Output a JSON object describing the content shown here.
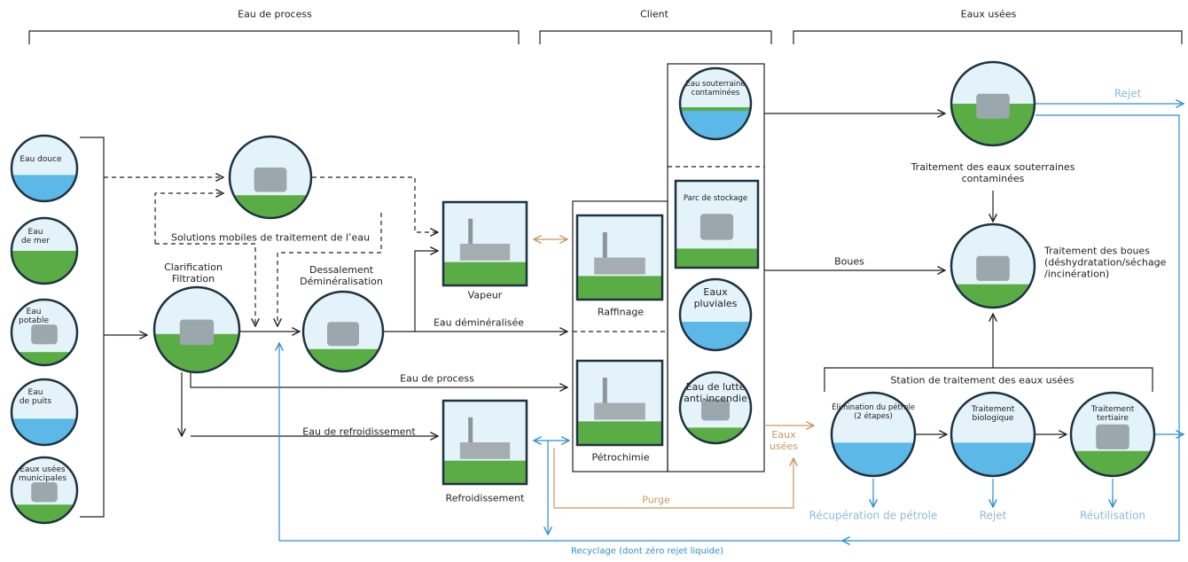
{
  "sections": {
    "process": "Eau de process",
    "client": "Client",
    "wastewater": "Eaux usées"
  },
  "sources": [
    "Eau douce",
    "Eau\nde mer",
    "Eau\npotable",
    "Eau\nde puits",
    "Eaux usées\nmunicipales"
  ],
  "process_nodes": {
    "mobile": "Solutions mobiles de traitement de l’eau",
    "clarification": "Clarification\nFiltration",
    "desalination": "Dessalement\nDéminéralisation"
  },
  "utilities": {
    "steam": "Vapeur",
    "cooling": "Refroidissement"
  },
  "plants": {
    "refining": "Raffinage",
    "petrochemical": "Pétrochimie"
  },
  "client_sources": [
    "Eau souterraine\ncontaminées",
    "Parc de stockage",
    "Eaux\npluviales",
    "Eau de lutte\nanti-incendie"
  ],
  "treatment": {
    "groundwater": "Traitement des eaux souterraines\ncontaminées",
    "sludge": "Traitement des boues\n(déshydratation/séchage\n/incinération)",
    "station": "Station de traitement des eaux usées",
    "oil_removal": "Élimination du pétrole\n(2 étapes)",
    "biological": "Traitement\nbiologique",
    "tertiary": "Traitement\ntertiaire"
  },
  "flows": {
    "demineralized": "Eau déminéralisée",
    "process_water": "Eau de process",
    "cooling_water": "Eau de refroidissement",
    "sludge": "Boues",
    "wastewater": "Eaux\nusées",
    "purge": "Purge",
    "discharge_top": "Rejet",
    "oil_recovery": "Récupération de pétrole",
    "discharge": "Rejet",
    "reuse": "Réutilisation",
    "recycling": "Recyclage (dont zéro rejet liquide)"
  }
}
